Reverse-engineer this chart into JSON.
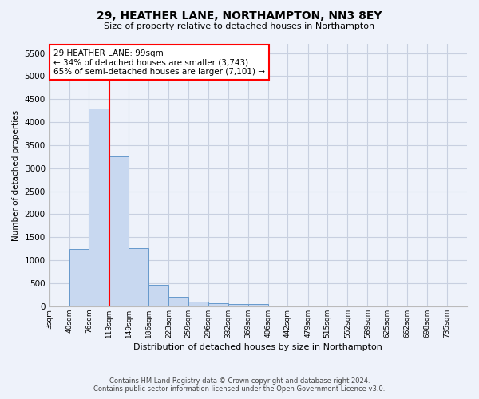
{
  "title": "29, HEATHER LANE, NORTHAMPTON, NN3 8EY",
  "subtitle": "Size of property relative to detached houses in Northampton",
  "xlabel": "Distribution of detached houses by size in Northampton",
  "ylabel": "Number of detached properties",
  "footer_line1": "Contains HM Land Registry data © Crown copyright and database right 2024.",
  "footer_line2": "Contains public sector information licensed under the Open Government Licence v3.0.",
  "bar_color": "#c8d8f0",
  "bar_edge_color": "#6699cc",
  "grid_color": "#c8d0e0",
  "background_color": "#eef2fa",
  "annotation_text": "29 HEATHER LANE: 99sqm\n← 34% of detached houses are smaller (3,743)\n65% of semi-detached houses are larger (7,101) →",
  "redline_x": 113,
  "categories": [
    "3sqm",
    "40sqm",
    "76sqm",
    "113sqm",
    "149sqm",
    "186sqm",
    "223sqm",
    "259sqm",
    "296sqm",
    "332sqm",
    "369sqm",
    "406sqm",
    "442sqm",
    "479sqm",
    "515sqm",
    "552sqm",
    "589sqm",
    "625sqm",
    "662sqm",
    "698sqm",
    "735sqm"
  ],
  "bin_edges": [
    3,
    40,
    76,
    113,
    149,
    186,
    223,
    259,
    296,
    332,
    369,
    406,
    442,
    479,
    515,
    552,
    589,
    625,
    662,
    698,
    735,
    772
  ],
  "values": [
    0,
    1250,
    4300,
    3250,
    1270,
    460,
    210,
    100,
    75,
    50,
    50,
    0,
    0,
    0,
    0,
    0,
    0,
    0,
    0,
    0,
    0
  ],
  "ylim": [
    0,
    5700
  ],
  "yticks": [
    0,
    500,
    1000,
    1500,
    2000,
    2500,
    3000,
    3500,
    4000,
    4500,
    5000,
    5500
  ]
}
